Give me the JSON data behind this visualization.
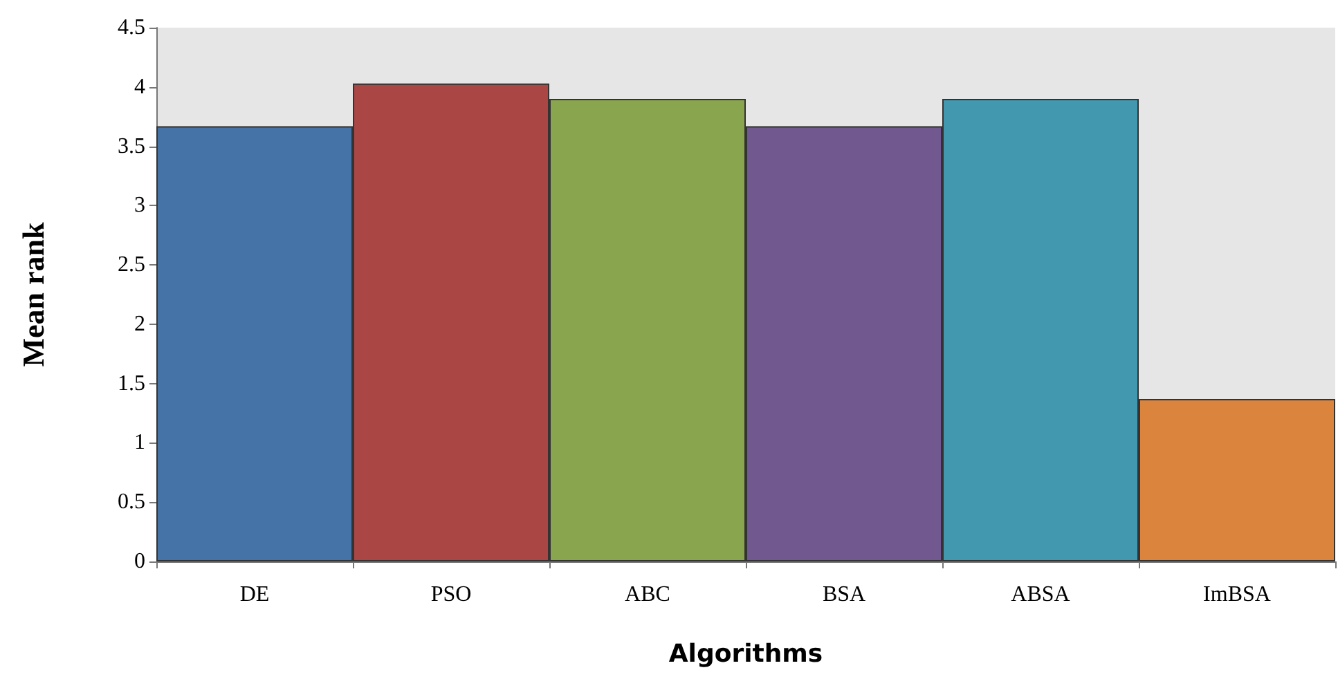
{
  "chart_data": {
    "type": "bar",
    "xlabel": "Algorithms",
    "ylabel": "Mean rank",
    "categories": [
      "DE",
      "PSO",
      "ABC",
      "BSA",
      "ABSA",
      "ImBSA"
    ],
    "values": [
      3.67,
      4.03,
      3.9,
      3.67,
      3.9,
      1.37
    ],
    "colors": [
      "#4572a7",
      "#aa4643",
      "#89a54e",
      "#71588f",
      "#4198af",
      "#db843d"
    ],
    "ylim": [
      0,
      4.5
    ],
    "yticks": [
      0,
      0.5,
      1,
      1.5,
      2,
      2.5,
      3,
      3.5,
      4,
      4.5
    ],
    "grid": false
  }
}
